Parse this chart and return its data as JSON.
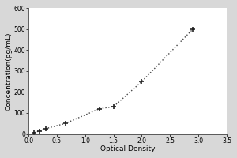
{
  "x": [
    0.1,
    0.2,
    0.3,
    0.65,
    1.25,
    1.5,
    2.0,
    2.9
  ],
  "y": [
    7,
    15,
    25,
    50,
    120,
    130,
    250,
    500
  ],
  "xlabel": "Optical Density",
  "ylabel": "Concentration(pg/mL)",
  "xlim": [
    0,
    3.5
  ],
  "ylim": [
    0,
    600
  ],
  "xticks": [
    0,
    0.5,
    1.0,
    1.5,
    2.0,
    2.5,
    3.0,
    3.5
  ],
  "yticks": [
    0,
    100,
    200,
    300,
    400,
    500,
    600
  ],
  "marker": "+",
  "marker_color": "#222222",
  "line_style": ":",
  "line_color": "#444444",
  "background_color": "#d8d8d8",
  "plot_bg_color": "#ffffff",
  "axis_fontsize": 6.5,
  "tick_fontsize": 5.5,
  "marker_size": 4,
  "line_width": 1.0,
  "marker_edge_width": 1.2
}
